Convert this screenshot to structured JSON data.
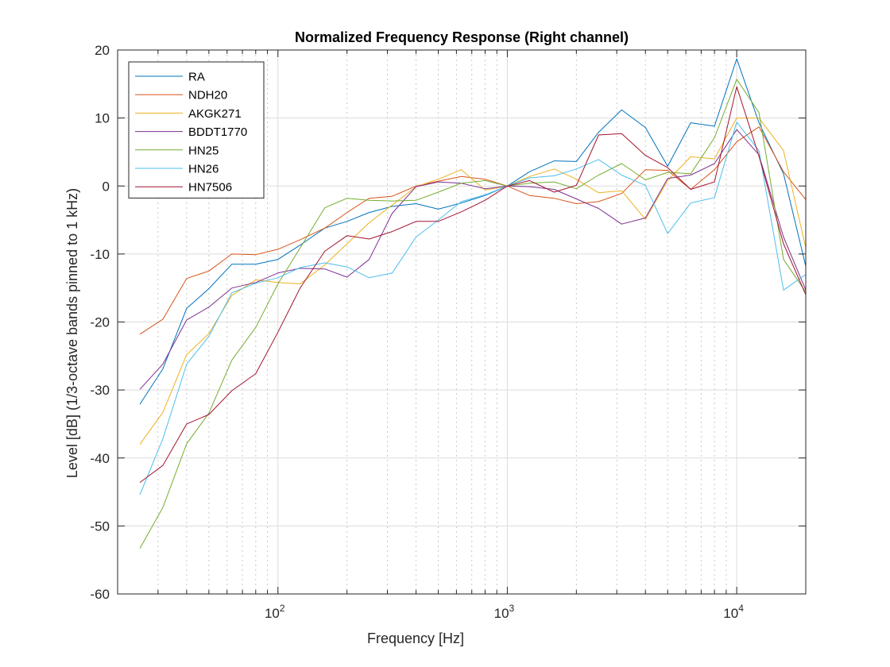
{
  "chart_data": {
    "type": "line",
    "title": "Normalized Frequency Response (Right channel)",
    "xlabel": "Frequency [Hz]",
    "ylabel": "Level [dB] (1/3-octave bands pinned to 1 kHz)",
    "xscale": "log",
    "xlim": [
      20,
      20000
    ],
    "ylim": [
      -60,
      20
    ],
    "yticks": [
      -60,
      -50,
      -40,
      -30,
      -20,
      -10,
      0,
      10,
      20
    ],
    "ytick_labels": [
      "-60",
      "-50",
      "-40",
      "-30",
      "-20",
      "-10",
      "0",
      "10",
      "20"
    ],
    "xticks_major": [
      {
        "value": 100,
        "base": "10",
        "exp": "2"
      },
      {
        "value": 1000,
        "base": "10",
        "exp": "3"
      },
      {
        "value": 10000,
        "base": "10",
        "exp": "4"
      }
    ],
    "grid": true,
    "legend_position": "top-left",
    "x": [
      25,
      31.5,
      40,
      50,
      63,
      80,
      100,
      125,
      160,
      200,
      250,
      315,
      400,
      500,
      630,
      800,
      1000,
      1250,
      1600,
      2000,
      2500,
      3150,
      4000,
      5000,
      6300,
      8000,
      10000,
      12500,
      16000,
      20000
    ],
    "series": [
      {
        "name": "RA",
        "color": "#0072BD",
        "values": [
          -32.1,
          -26.9,
          -18.0,
          -15.1,
          -11.5,
          -11.5,
          -10.8,
          -8.7,
          -6.2,
          -5.2,
          -3.9,
          -3.0,
          -2.6,
          -3.4,
          -2.5,
          -1.4,
          0,
          2.1,
          3.7,
          3.6,
          7.9,
          11.2,
          8.6,
          2.9,
          9.3,
          8.8,
          18.7,
          9.3,
          1.8,
          -11.8
        ]
      },
      {
        "name": "NDH20",
        "color": "#D95319",
        "values": [
          -21.8,
          -19.6,
          -13.6,
          -12.5,
          -10.0,
          -10.1,
          -9.3,
          -7.9,
          -6.2,
          -3.9,
          -1.8,
          -1.5,
          0.0,
          0.7,
          1.4,
          1.0,
          0,
          -1.4,
          -1.8,
          -2.6,
          -2.3,
          -1.1,
          2.4,
          2.3,
          -0.5,
          2.4,
          6.5,
          8.7,
          2.1,
          -2.0
        ]
      },
      {
        "name": "AKGK271",
        "color": "#EDB120",
        "values": [
          -38.0,
          -33.3,
          -24.8,
          -21.7,
          -16.1,
          -13.8,
          -14.2,
          -14.4,
          -11.6,
          -8.5,
          -5.4,
          -2.8,
          -0.1,
          1.0,
          2.4,
          -0.6,
          0,
          1.4,
          2.5,
          1.0,
          -1.0,
          -0.7,
          -4.9,
          0.8,
          4.3,
          4.0,
          10.0,
          10.0,
          5.2,
          -9.1
        ]
      },
      {
        "name": "BDDT1770",
        "color": "#7E2F8E",
        "values": [
          -29.9,
          -26.2,
          -19.7,
          -17.8,
          -15.0,
          -14.2,
          -12.8,
          -12.1,
          -12.2,
          -13.4,
          -10.8,
          -4.0,
          -0.1,
          0.6,
          0.4,
          -0.4,
          0,
          -0.1,
          -0.5,
          -1.9,
          -3.3,
          -5.6,
          -4.7,
          1.1,
          1.6,
          3.3,
          8.3,
          4.6,
          -7.5,
          -15.3
        ]
      },
      {
        "name": "HN25",
        "color": "#77AC30",
        "values": [
          -53.3,
          -47.3,
          -37.9,
          -33.4,
          -25.6,
          -20.8,
          -14.4,
          -9.1,
          -3.2,
          -1.8,
          -2.1,
          -2.2,
          -2.1,
          -0.9,
          0.4,
          0.8,
          0,
          0.4,
          0.6,
          -0.4,
          1.6,
          3.3,
          0.9,
          2.0,
          1.8,
          7.1,
          15.7,
          10.8,
          -10.8,
          -15.6
        ]
      },
      {
        "name": "HN26",
        "color": "#4DBEEE",
        "values": [
          -45.4,
          -37.2,
          -26.2,
          -22.1,
          -15.7,
          -14.3,
          -13.5,
          -12.0,
          -11.3,
          -11.9,
          -13.5,
          -12.8,
          -7.5,
          -5.0,
          -2.3,
          -1.3,
          0,
          1.2,
          1.5,
          2.5,
          3.9,
          1.6,
          0.1,
          -7.0,
          -2.5,
          -1.7,
          9.4,
          5.2,
          -15.3,
          -13.0
        ]
      },
      {
        "name": "HN7506",
        "color": "#A2142F",
        "values": [
          -43.6,
          -41.1,
          -35.0,
          -33.6,
          -30.1,
          -27.6,
          -21.5,
          -15.0,
          -9.6,
          -7.3,
          -7.8,
          -6.7,
          -5.2,
          -5.2,
          -3.8,
          -2.1,
          0,
          0.8,
          -0.9,
          0.1,
          7.5,
          7.7,
          4.5,
          2.7,
          -0.5,
          0.6,
          14.6,
          4.4,
          -8.5,
          -16.0
        ]
      }
    ]
  }
}
